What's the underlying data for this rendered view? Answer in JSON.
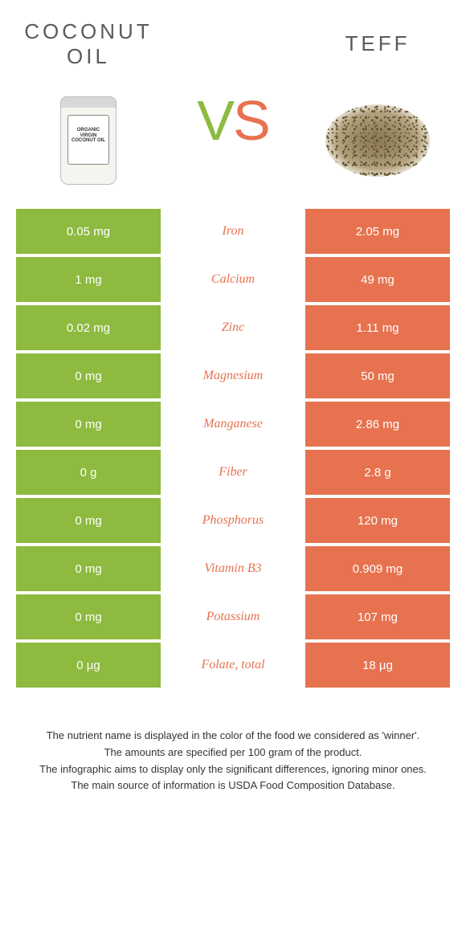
{
  "colors": {
    "left": "#8dba3f",
    "right": "#e6724f",
    "text_on_color": "#ffffff"
  },
  "left_food": {
    "title": "COCONUT OIL"
  },
  "right_food": {
    "title": "TEFF"
  },
  "vs": {
    "v": "V",
    "s": "S"
  },
  "rows": [
    {
      "nutrient": "Iron",
      "left": "0.05 mg",
      "right": "2.05 mg",
      "winner": "right"
    },
    {
      "nutrient": "Calcium",
      "left": "1 mg",
      "right": "49 mg",
      "winner": "right"
    },
    {
      "nutrient": "Zinc",
      "left": "0.02 mg",
      "right": "1.11 mg",
      "winner": "right"
    },
    {
      "nutrient": "Magnesium",
      "left": "0 mg",
      "right": "50 mg",
      "winner": "right"
    },
    {
      "nutrient": "Manganese",
      "left": "0 mg",
      "right": "2.86 mg",
      "winner": "right"
    },
    {
      "nutrient": "Fiber",
      "left": "0 g",
      "right": "2.8 g",
      "winner": "right"
    },
    {
      "nutrient": "Phosphorus",
      "left": "0 mg",
      "right": "120 mg",
      "winner": "right"
    },
    {
      "nutrient": "Vitamin B3",
      "left": "0 mg",
      "right": "0.909 mg",
      "winner": "right"
    },
    {
      "nutrient": "Potassium",
      "left": "0 mg",
      "right": "107 mg",
      "winner": "right"
    },
    {
      "nutrient": "Folate, total",
      "left": "0 µg",
      "right": "18 µg",
      "winner": "right"
    }
  ],
  "footnotes": [
    "The nutrient name is displayed in the color of the food we considered as 'winner'.",
    "The amounts are specified per 100 gram of the product.",
    "The infographic aims to display only the significant differences, ignoring minor ones.",
    "The main source of information is USDA Food Composition Database."
  ],
  "jar_label": "ORGANIC VIRGIN COCONUT OIL"
}
